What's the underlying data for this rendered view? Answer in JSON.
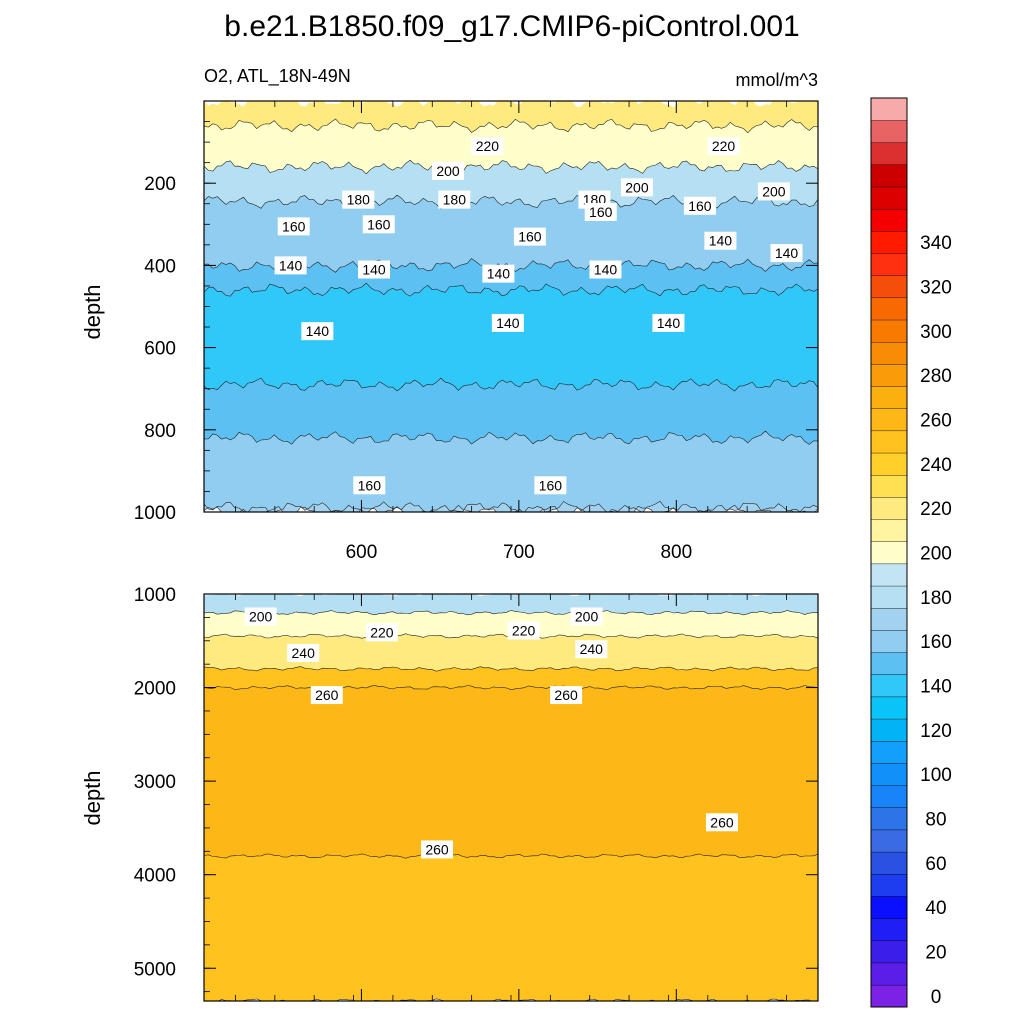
{
  "title": "b.e21.B1850.f09_g17.CMIP6-piControl.001",
  "subtitle_left": "O2, ATL_18N-49N",
  "subtitle_right": "mmol/m^3",
  "chart_data": [
    {
      "type": "contour",
      "panel": "upper",
      "ylabel": "depth",
      "xlabel": "",
      "xlim": [
        500,
        890
      ],
      "ylim": [
        1000,
        0
      ],
      "y_reversed": true,
      "xticks": [
        600,
        700,
        800
      ],
      "yticks": [
        200,
        400,
        600,
        800,
        1000
      ],
      "grid": false,
      "contour_interval": 10,
      "layers": [
        {
          "level": 220,
          "top": 0,
          "bottom": 60
        },
        {
          "level": 200,
          "top": 60,
          "bottom": 160
        },
        {
          "level": 180,
          "top": 160,
          "bottom": 245
        },
        {
          "level": 160,
          "top": 245,
          "bottom": 400
        },
        {
          "level": 150,
          "top": 400,
          "bottom": 460
        },
        {
          "level": 140,
          "top": 460,
          "bottom": 690
        },
        {
          "level": 150,
          "top": 690,
          "bottom": 820
        },
        {
          "level": 160,
          "top": 820,
          "bottom": 990
        },
        {
          "level": 170,
          "top": 990,
          "bottom": 1000
        }
      ],
      "contour_labels": [
        {
          "text": "220",
          "x": 680,
          "y": 110
        },
        {
          "text": "220",
          "x": 830,
          "y": 110
        },
        {
          "text": "200",
          "x": 655,
          "y": 170
        },
        {
          "text": "200",
          "x": 775,
          "y": 210
        },
        {
          "text": "200",
          "x": 862,
          "y": 220
        },
        {
          "text": "180",
          "x": 598,
          "y": 240
        },
        {
          "text": "180",
          "x": 659,
          "y": 240
        },
        {
          "text": "180",
          "x": 748,
          "y": 240
        },
        {
          "text": "160",
          "x": 557,
          "y": 305
        },
        {
          "text": "160",
          "x": 611,
          "y": 300
        },
        {
          "text": "160",
          "x": 707,
          "y": 330
        },
        {
          "text": "160",
          "x": 752,
          "y": 270
        },
        {
          "text": "160",
          "x": 815,
          "y": 255
        },
        {
          "text": "140",
          "x": 555,
          "y": 400
        },
        {
          "text": "140",
          "x": 608,
          "y": 410
        },
        {
          "text": "140",
          "x": 687,
          "y": 420
        },
        {
          "text": "140",
          "x": 755,
          "y": 410
        },
        {
          "text": "140",
          "x": 828,
          "y": 340
        },
        {
          "text": "140",
          "x": 870,
          "y": 370
        },
        {
          "text": "140",
          "x": 572,
          "y": 560
        },
        {
          "text": "140",
          "x": 693,
          "y": 540
        },
        {
          "text": "140",
          "x": 795,
          "y": 540
        },
        {
          "text": "160",
          "x": 605,
          "y": 935
        },
        {
          "text": "160",
          "x": 720,
          "y": 935
        }
      ]
    },
    {
      "type": "contour",
      "panel": "lower",
      "ylabel": "depth",
      "xlabel": "",
      "xlim": [
        500,
        890
      ],
      "ylim": [
        5350,
        1000
      ],
      "y_reversed": true,
      "xticks": [
        600,
        700,
        800
      ],
      "yticks": [
        1000,
        2000,
        3000,
        4000,
        5000
      ],
      "grid": false,
      "contour_interval": 10,
      "layers": [
        {
          "level": 180,
          "top": 1000,
          "bottom": 1200
        },
        {
          "level": 200,
          "top": 1200,
          "bottom": 1450
        },
        {
          "level": 220,
          "top": 1450,
          "bottom": 1800
        },
        {
          "level": 250,
          "top": 1800,
          "bottom": 2000
        },
        {
          "level": 260,
          "top": 2000,
          "bottom": 3800
        },
        {
          "level": 250,
          "top": 3800,
          "bottom": 5350
        }
      ],
      "contour_labels": [
        {
          "text": "200",
          "x": 536,
          "y": 1240
        },
        {
          "text": "220",
          "x": 613,
          "y": 1410
        },
        {
          "text": "240",
          "x": 563,
          "y": 1630
        },
        {
          "text": "260",
          "x": 578,
          "y": 2080
        },
        {
          "text": "200",
          "x": 743,
          "y": 1240
        },
        {
          "text": "220",
          "x": 703,
          "y": 1390
        },
        {
          "text": "240",
          "x": 746,
          "y": 1590
        },
        {
          "text": "260",
          "x": 730,
          "y": 2080
        },
        {
          "text": "260",
          "x": 648,
          "y": 3730
        },
        {
          "text": "260",
          "x": 829,
          "y": 3440
        }
      ]
    }
  ],
  "colorbar": {
    "tick_labels": [
      "0",
      "20",
      "40",
      "60",
      "80",
      "100",
      "120",
      "140",
      "160",
      "180",
      "200",
      "220",
      "240",
      "260",
      "280",
      "300",
      "320",
      "340"
    ],
    "colors": [
      "#7b22e6",
      "#5a1ee8",
      "#3b1eea",
      "#1e1ef5",
      "#0a10ff",
      "#1e3cf0",
      "#2a52e2",
      "#3a6ae4",
      "#2c74e8",
      "#1884f8",
      "#1090f8",
      "#12a0fc",
      "#00b4f6",
      "#0ac4f8",
      "#30c8f8",
      "#5cc0f2",
      "#90cdf0",
      "#a2d2f0",
      "#b5dff2",
      "#c3e5f3",
      "#ffffcc",
      "#fff4a0",
      "#ffea80",
      "#ffe050",
      "#ffd02a",
      "#ffc21e",
      "#fdb716",
      "#fcb010",
      "#fa9c0a",
      "#f88c06",
      "#f87b00",
      "#f86900",
      "#f54e0a",
      "#ff3010",
      "#ff1a00",
      "#f40000",
      "#dd0000",
      "#cc0000",
      "#dc3030",
      "#e86464",
      "#f7aaaa"
    ]
  }
}
